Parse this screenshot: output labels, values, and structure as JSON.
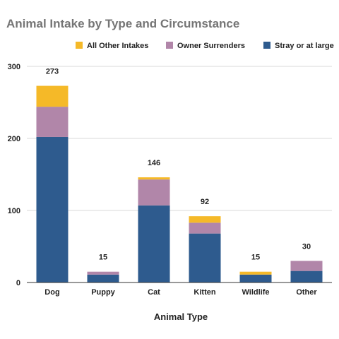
{
  "chart_data": {
    "type": "bar",
    "stacked": true,
    "title": "Animal Intake by Type and Circumstance",
    "xlabel": "Animal Type",
    "ylabel": "",
    "ylim": [
      0,
      300
    ],
    "yticks": [
      "0",
      "100",
      "200",
      "300"
    ],
    "grid": true,
    "legend_position": "top",
    "categories": [
      "Dog",
      "Puppy",
      "Cat",
      "Kitten",
      "Wildlife",
      "Other"
    ],
    "totals": [
      "273",
      "15",
      "146",
      "92",
      "15",
      "30"
    ],
    "series": [
      {
        "name": "Stray or at large",
        "color": "#2e5b8e",
        "values": [
          202,
          11,
          107,
          68,
          11,
          16
        ]
      },
      {
        "name": "Owner Surrenders",
        "color": "#b186a9",
        "values": [
          42,
          4,
          36,
          15,
          0,
          14
        ]
      },
      {
        "name": "All Other Intakes",
        "color": "#f5b928",
        "values": [
          29,
          0,
          3,
          9,
          4,
          0
        ]
      }
    ],
    "legend_order": [
      2,
      1,
      0
    ]
  }
}
